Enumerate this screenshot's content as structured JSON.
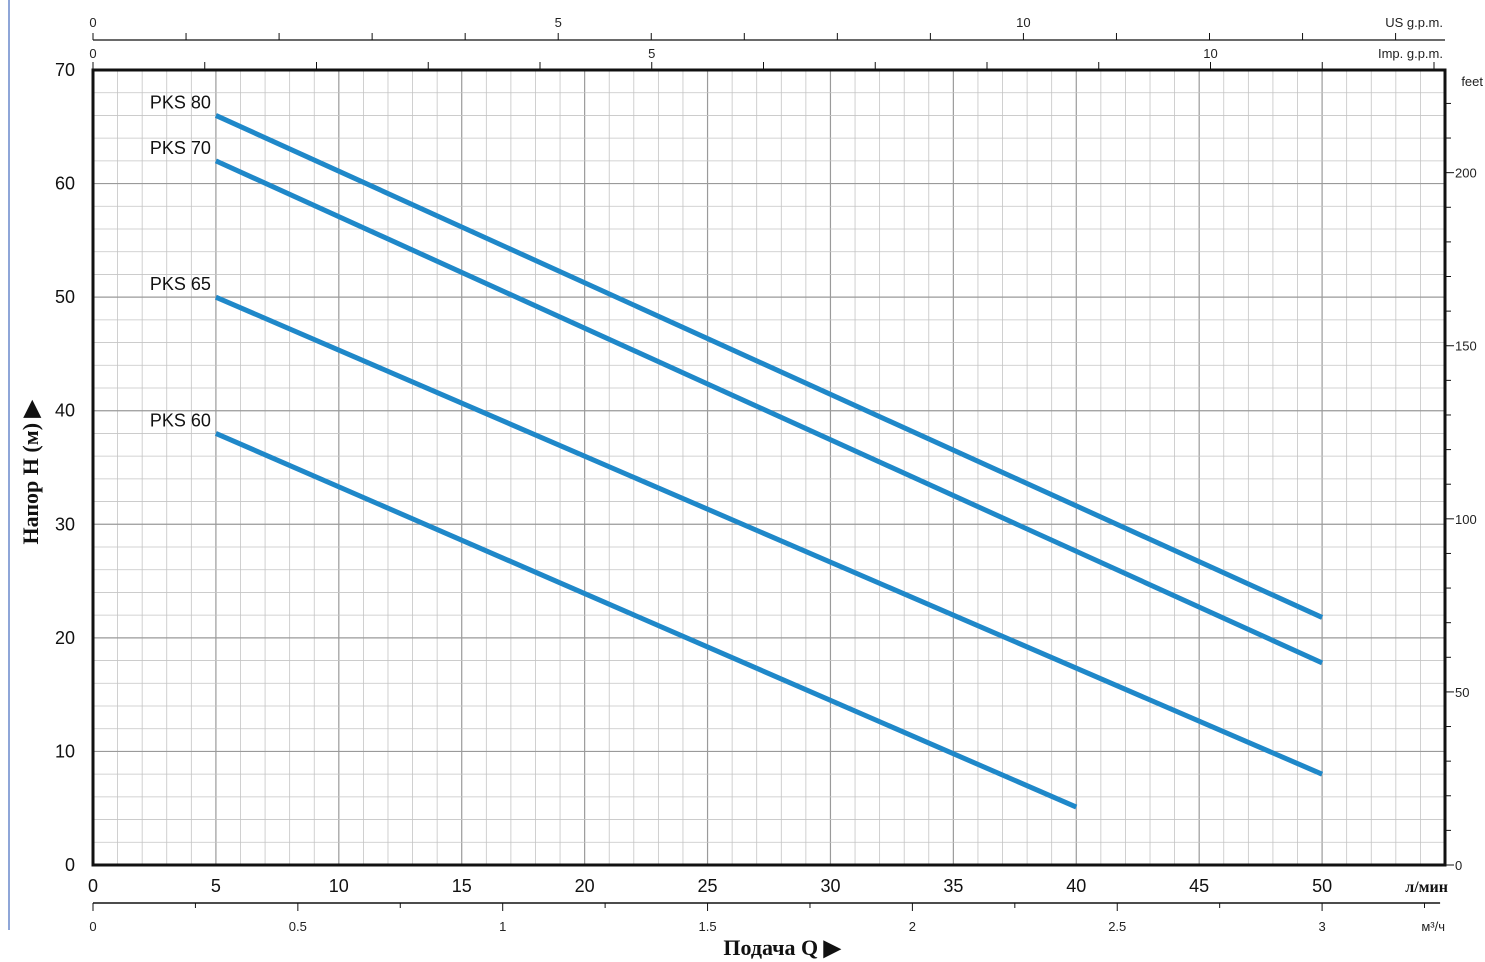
{
  "chart_data": {
    "type": "line",
    "x_unit_label": "л/мин",
    "x_ticks": [
      "0",
      "5",
      "10",
      "15",
      "20",
      "25",
      "30",
      "35",
      "40",
      "45",
      "50"
    ],
    "x_range": [
      0,
      55
    ],
    "y_ticks": [
      "0",
      "10",
      "20",
      "30",
      "40",
      "50",
      "60",
      "70"
    ],
    "y_range": [
      0,
      70
    ],
    "grid": true,
    "xlabel": "Подача Q ▶",
    "ylabel": "Напор H (м) ▶",
    "secondary_axes": {
      "us_gpm": {
        "label": "US g.p.m.",
        "ticks": [
          "0",
          "5",
          "10"
        ]
      },
      "imp_gpm": {
        "label": "Imp. g.p.m.",
        "ticks": [
          "0",
          "5",
          "10"
        ]
      },
      "feet": {
        "label": "feet",
        "ticks": [
          "0",
          "50",
          "100",
          "150",
          "200"
        ]
      },
      "m3h": {
        "label": "м³/ч",
        "ticks": [
          "0",
          "0.5",
          "1",
          "1.5",
          "2",
          "2.5",
          "3"
        ]
      }
    },
    "series": [
      {
        "name": "PKS 80",
        "x": [
          5,
          50
        ],
        "y": [
          66,
          21.8
        ]
      },
      {
        "name": "PKS 70",
        "x": [
          5,
          50
        ],
        "y": [
          62,
          17.8
        ]
      },
      {
        "name": "PKS 65",
        "x": [
          5,
          50
        ],
        "y": [
          50,
          8
        ]
      },
      {
        "name": "PKS 60",
        "x": [
          5,
          40
        ],
        "y": [
          38,
          5.1
        ]
      }
    ],
    "line_color": "#1f88c9"
  }
}
